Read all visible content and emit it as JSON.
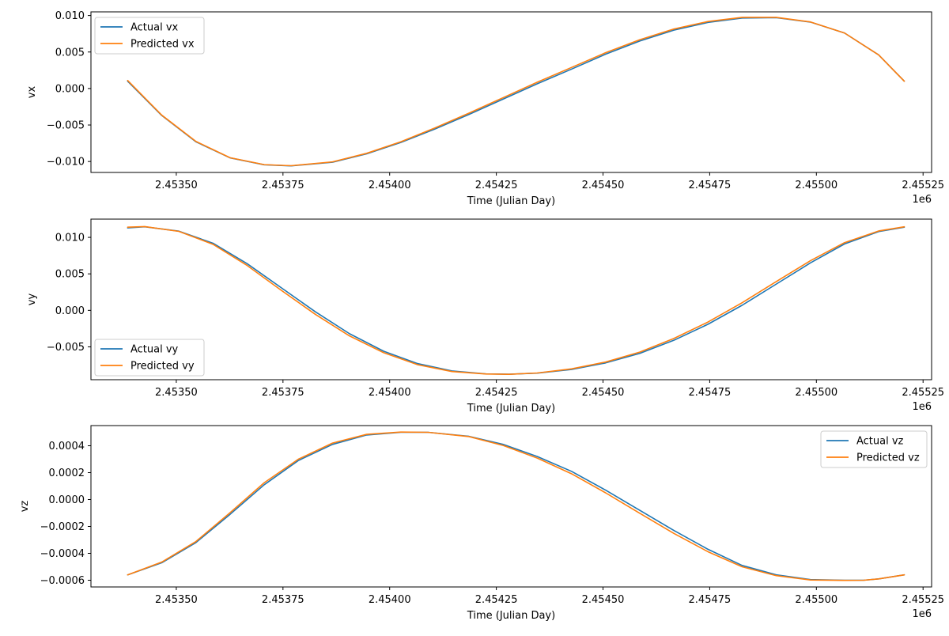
{
  "chart_data": [
    {
      "type": "line",
      "xlabel": "Time (Julian Day)",
      "ylabel": "vx",
      "x_offset_label": "1e6",
      "xlim": [
        2453300,
        2455270
      ],
      "ylim": [
        -0.0115,
        0.0105
      ],
      "xticks": [
        2453500,
        2453750,
        2454000,
        2454250,
        2454500,
        2454750,
        2455000,
        2455250
      ],
      "xtick_labels": [
        "2.45350",
        "2.45375",
        "2.45400",
        "2.45425",
        "2.45450",
        "2.45475",
        "2.45500",
        "2.45525"
      ],
      "yticks": [
        -0.01,
        -0.005,
        0.0,
        0.005,
        0.01
      ],
      "ytick_labels": [
        "−0.010",
        "−0.005",
        "0.000",
        "0.005",
        "0.010"
      ],
      "legend_position": "upper-left",
      "grid": false,
      "series": [
        {
          "name": "Actual vx",
          "color": "#1f77b4",
          "x": [
            2453386,
            2453466,
            2453546,
            2453626,
            2453706,
            2453769,
            2453866,
            2453946,
            2454026,
            2454106,
            2454186,
            2454266,
            2454346,
            2454426,
            2454506,
            2454586,
            2454666,
            2454746,
            2454826,
            2454906,
            2454986,
            2455066,
            2455146,
            2455206
          ],
          "y": [
            0.001,
            -0.0037,
            -0.0073,
            -0.0095,
            -0.01045,
            -0.0106,
            -0.0101,
            -0.00895,
            -0.0074,
            -0.00555,
            -0.00355,
            -0.00145,
            0.00065,
            0.00265,
            0.0047,
            0.0065,
            0.008,
            0.00905,
            0.00965,
            0.0097,
            0.0091,
            0.0076,
            0.0046,
            0.001
          ]
        },
        {
          "name": "Predicted vx",
          "color": "#ff7f0e",
          "x": [
            2453386,
            2453466,
            2453546,
            2453626,
            2453706,
            2453769,
            2453866,
            2453946,
            2454026,
            2454106,
            2454186,
            2454266,
            2454346,
            2454426,
            2454506,
            2454586,
            2454666,
            2454746,
            2454826,
            2454906,
            2454986,
            2455066,
            2455146,
            2455206
          ],
          "y": [
            0.0011,
            -0.00365,
            -0.00725,
            -0.00948,
            -0.01043,
            -0.01058,
            -0.01005,
            -0.00888,
            -0.0073,
            -0.0054,
            -0.00337,
            -0.00125,
            0.00087,
            0.00288,
            0.0049,
            0.00668,
            0.00815,
            0.00918,
            0.00975,
            0.00975,
            0.00912,
            0.0076,
            0.0046,
            0.001
          ]
        }
      ]
    },
    {
      "type": "line",
      "xlabel": "Time (Julian Day)",
      "ylabel": "vy",
      "x_offset_label": "1e6",
      "xlim": [
        2453300,
        2455270
      ],
      "ylim": [
        -0.0095,
        0.0125
      ],
      "xticks": [
        2453500,
        2453750,
        2454000,
        2454250,
        2454500,
        2454750,
        2455000,
        2455250
      ],
      "xtick_labels": [
        "2.45350",
        "2.45375",
        "2.45400",
        "2.45425",
        "2.45450",
        "2.45475",
        "2.45500",
        "2.45525"
      ],
      "yticks": [
        -0.005,
        0.0,
        0.005,
        0.01
      ],
      "ytick_labels": [
        "−0.005",
        "0.000",
        "0.005",
        "0.010"
      ],
      "legend_position": "lower-left",
      "grid": false,
      "series": [
        {
          "name": "Actual vy",
          "color": "#1f77b4",
          "x": [
            2453386,
            2453426,
            2453506,
            2453586,
            2453666,
            2453746,
            2453826,
            2453906,
            2453986,
            2454066,
            2454146,
            2454226,
            2454280,
            2454346,
            2454426,
            2454506,
            2454586,
            2454666,
            2454746,
            2454826,
            2454906,
            2454986,
            2455066,
            2455146,
            2455206
          ],
          "y": [
            0.0113,
            0.01145,
            0.01085,
            0.0092,
            0.0064,
            0.0031,
            -0.0002,
            -0.0032,
            -0.0056,
            -0.0073,
            -0.0083,
            -0.0087,
            -0.00875,
            -0.0086,
            -0.0081,
            -0.0072,
            -0.0059,
            -0.0041,
            -0.0019,
            0.0007,
            0.0036,
            0.0065,
            0.0091,
            0.0108,
            0.0114
          ]
        },
        {
          "name": "Predicted vy",
          "color": "#ff7f0e",
          "x": [
            2453386,
            2453426,
            2453506,
            2453586,
            2453666,
            2453746,
            2453826,
            2453906,
            2453986,
            2454066,
            2454146,
            2454226,
            2454280,
            2454346,
            2454426,
            2454506,
            2454586,
            2454666,
            2454746,
            2454826,
            2454906,
            2454986,
            2455066,
            2455146,
            2455206
          ],
          "y": [
            0.0114,
            0.01148,
            0.01082,
            0.00905,
            0.00615,
            0.00275,
            -0.00055,
            -0.0035,
            -0.0058,
            -0.00745,
            -0.00838,
            -0.00872,
            -0.00876,
            -0.00858,
            -0.00802,
            -0.00708,
            -0.00572,
            -0.00385,
            -0.0016,
            0.00105,
            0.00395,
            0.0068,
            0.00928,
            0.01088,
            0.01145
          ]
        }
      ]
    },
    {
      "type": "line",
      "xlabel": "Time (Julian Day)",
      "ylabel": "vz",
      "x_offset_label": "1e6",
      "xlim": [
        2453300,
        2455270
      ],
      "ylim": [
        -0.00065,
        0.00055
      ],
      "xticks": [
        2453500,
        2453750,
        2454000,
        2454250,
        2454500,
        2454750,
        2455000,
        2455250
      ],
      "xtick_labels": [
        "2.45350",
        "2.45375",
        "2.45400",
        "2.45425",
        "2.45450",
        "2.45475",
        "2.45500",
        "2.45525"
      ],
      "yticks": [
        -0.0006,
        -0.0004,
        -0.0002,
        0.0,
        0.0002,
        0.0004
      ],
      "ytick_labels": [
        "−0.0006",
        "−0.0004",
        "−0.0002",
        "0.0000",
        "0.0002",
        "0.0004"
      ],
      "legend_position": "upper-right",
      "grid": false,
      "series": [
        {
          "name": "Actual vz",
          "color": "#1f77b4",
          "x": [
            2453386,
            2453466,
            2453546,
            2453626,
            2453706,
            2453786,
            2453866,
            2453946,
            2454026,
            2454090,
            2454186,
            2454266,
            2454346,
            2454426,
            2454506,
            2454586,
            2454666,
            2454746,
            2454826,
            2454906,
            2454986,
            2455066,
            2455111,
            2455146,
            2455206
          ],
          "y": [
            -0.00056,
            -0.00047,
            -0.00032,
            -0.00011,
            0.00011,
            0.00029,
            0.00041,
            0.00048,
            0.0005,
            0.0005,
            0.00047,
            0.00041,
            0.00032,
            0.00021,
            7e-05,
            -8e-05,
            -0.00023,
            -0.00037,
            -0.00049,
            -0.00056,
            -0.000595,
            -0.0006,
            -0.0006,
            -0.00059,
            -0.00056
          ]
        },
        {
          "name": "Predicted vz",
          "color": "#ff7f0e",
          "x": [
            2453386,
            2453466,
            2453546,
            2453626,
            2453706,
            2453786,
            2453866,
            2453946,
            2454026,
            2454090,
            2454186,
            2454266,
            2454346,
            2454426,
            2454506,
            2454586,
            2454666,
            2454746,
            2454826,
            2454906,
            2454986,
            2455066,
            2455111,
            2455146,
            2455206
          ],
          "y": [
            -0.00056,
            -0.000465,
            -0.000312,
            -9.8e-05,
            0.000125,
            0.0003,
            0.00042,
            0.000485,
            0.000502,
            0.0005,
            0.000468,
            0.000402,
            0.000308,
            0.000192,
            5e-05,
            -0.000102,
            -0.000252,
            -0.000388,
            -0.0005,
            -0.000566,
            -0.000598,
            -0.000601,
            -0.0006,
            -0.00059,
            -0.00056
          ]
        }
      ]
    }
  ]
}
